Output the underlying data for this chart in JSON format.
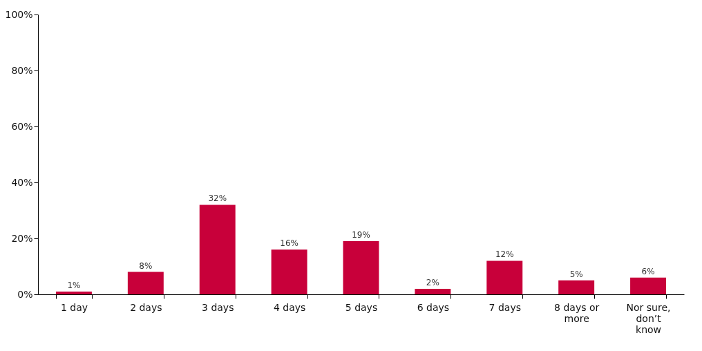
{
  "chart_data": {
    "type": "bar",
    "categories": [
      "1 day",
      "2 days",
      "3 days",
      "4 days",
      "5 days",
      "6 days",
      "7 days",
      "8 days or more",
      "Nor sure, don’t know"
    ],
    "values": [
      1,
      8,
      32,
      16,
      19,
      2,
      12,
      5,
      6
    ],
    "value_labels": [
      "1%",
      "8%",
      "32%",
      "16%",
      "19%",
      "2%",
      "12%",
      "5%",
      "6%"
    ],
    "color": "#c8003a",
    "ylim": [
      0,
      100
    ],
    "yticks": [
      {
        "value": 0,
        "label": "0%"
      },
      {
        "value": 20,
        "label": "20%"
      },
      {
        "value": 40,
        "label": "40%"
      },
      {
        "value": 60,
        "label": "60%"
      },
      {
        "value": 80,
        "label": "80%"
      },
      {
        "value": 100,
        "label": "100%"
      }
    ],
    "grid": false
  }
}
